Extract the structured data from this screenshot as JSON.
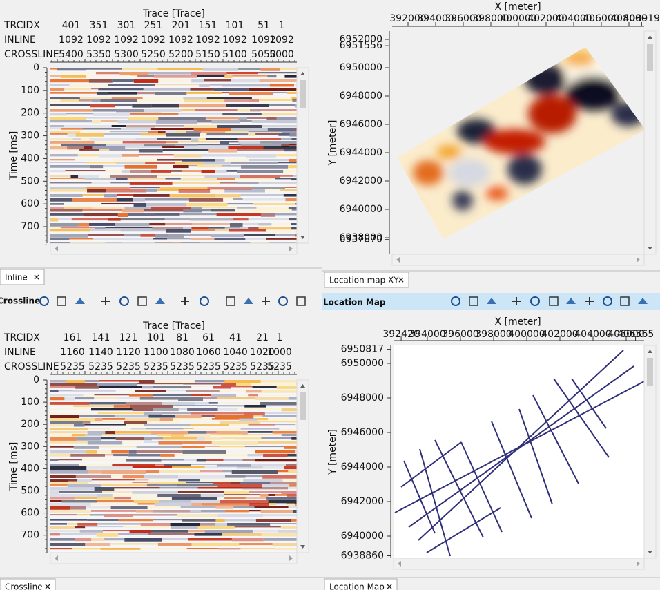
{
  "toolbars": [
    {
      "label": "Crossline"
    },
    {
      "label": "Location Map"
    }
  ],
  "sections": [
    {
      "x_title": "Trace [Trace]",
      "rows": [
        {
          "name": "TRCIDX",
          "values": [
            "401",
            "351",
            "301",
            "251",
            "201",
            "151",
            "101",
            "51",
            "1"
          ]
        },
        {
          "name": "INLINE",
          "values": [
            "1092",
            "1092",
            "1092",
            "1092",
            "1092",
            "1092",
            "1092",
            "1092",
            "1092"
          ]
        },
        {
          "name": "CROSSLINE",
          "values": [
            "5400",
            "5350",
            "5300",
            "5250",
            "5200",
            "5150",
            "5100",
            "5050",
            "5000"
          ]
        }
      ],
      "y_title": "Time [ms]",
      "yticks": [
        "0",
        "100",
        "200",
        "300",
        "400",
        "500",
        "600",
        "700"
      ],
      "tab": "Inline"
    },
    {
      "x_title": "Trace [Trace]",
      "rows": [
        {
          "name": "TRCIDX",
          "values": [
            "161",
            "141",
            "121",
            "101",
            "81",
            "61",
            "41",
            "21",
            "1"
          ]
        },
        {
          "name": "INLINE",
          "values": [
            "1160",
            "1140",
            "1120",
            "1100",
            "1080",
            "1060",
            "1040",
            "1020",
            "1000"
          ]
        },
        {
          "name": "CROSSLINE",
          "values": [
            "5235",
            "5235",
            "5235",
            "5235",
            "5235",
            "5235",
            "5235",
            "5235",
            "5235"
          ]
        }
      ],
      "y_title": "Time [ms]",
      "yticks": [
        "0",
        "100",
        "200",
        "300",
        "400",
        "500",
        "600",
        "700"
      ],
      "tab": "Crossline"
    }
  ],
  "maps": [
    {
      "x_title": "X [meter]",
      "xticks": [
        "392000",
        "394000",
        "396000",
        "398000",
        "400000",
        "402000",
        "404000",
        "406000",
        "408000",
        "408919"
      ],
      "y_title": "Y [meter]",
      "yticks": [
        "6952000",
        "6951556",
        "6950000",
        "6948000",
        "6946000",
        "6944000",
        "6942000",
        "6940000",
        "6938000",
        "6937870"
      ],
      "tab": "Location map XY"
    },
    {
      "x_title": "X [meter]",
      "xticks": [
        "392420",
        "394000",
        "396000",
        "398000",
        "400000",
        "402000",
        "404000",
        "406000",
        "406565"
      ],
      "y_title": "Y [meter]",
      "yticks": [
        "6950817",
        "6950000",
        "6948000",
        "6946000",
        "6944000",
        "6942000",
        "6940000",
        "6938860"
      ],
      "tab": "Location Map"
    }
  ]
}
